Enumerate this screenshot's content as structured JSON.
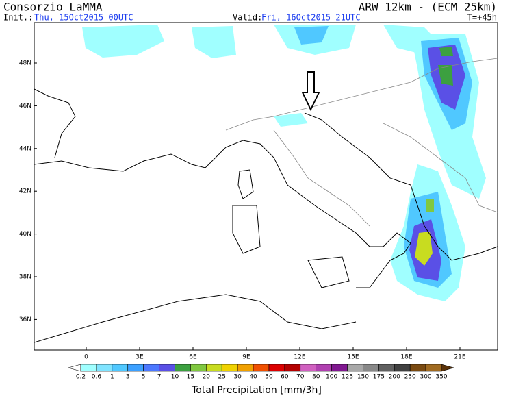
{
  "header": {
    "title": "Consorzio LaMMA",
    "model": "ARW 12km - (ECM 25km)",
    "init_label": "Init.:",
    "init": "Thu, 15Oct2015 00UTC",
    "valid_label": "Valid:",
    "valid": "Fri, 16Oct2015 21UTC",
    "lead": "T=+45h"
  },
  "map": {
    "lat_labels": [
      "48N",
      "46N",
      "44N",
      "42N",
      "40N",
      "38N",
      "36N"
    ],
    "lon_labels": [
      "0",
      "3E",
      "6E",
      "9E",
      "12E",
      "15E",
      "18E",
      "21E"
    ]
  },
  "legend": {
    "title": "Total Precipitation [mm/3h]",
    "levels": [
      0.2,
      0.6,
      1,
      3,
      5,
      7,
      10,
      15,
      20,
      25,
      30,
      40,
      50,
      60,
      70,
      80,
      100,
      125,
      150,
      175,
      200,
      250,
      300,
      350
    ],
    "colors": [
      "#ffffff",
      "#a0ffff",
      "#80e4ff",
      "#50c8ff",
      "#3ca0ff",
      "#4c78ff",
      "#5a50e6",
      "#3ca040",
      "#80c840",
      "#c8dc20",
      "#f0d200",
      "#f0a000",
      "#f05000",
      "#dc0000",
      "#b40000",
      "#d060c0",
      "#b040b0",
      "#801890",
      "#a8a8a8",
      "#888888",
      "#606060",
      "#404040",
      "#7a4a10",
      "#a06a20",
      "#5a3208"
    ]
  }
}
